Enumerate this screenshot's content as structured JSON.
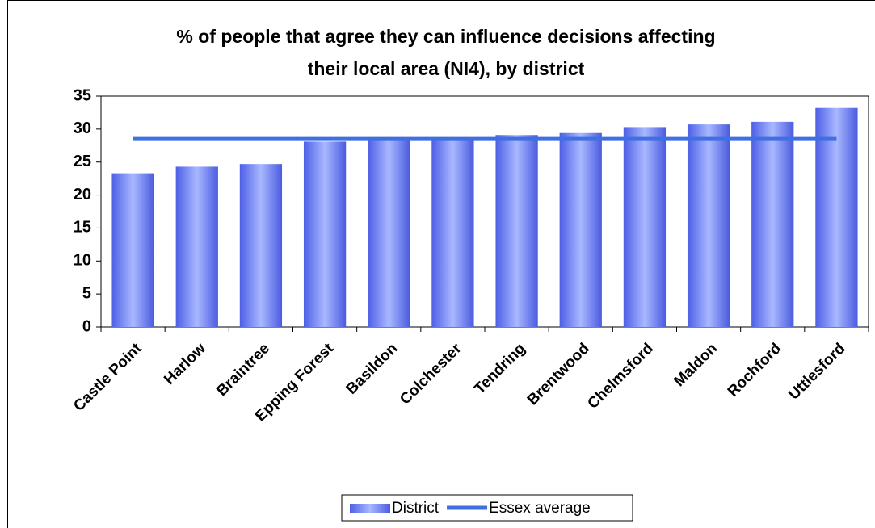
{
  "chart_data": {
    "type": "bar",
    "title": [
      "% of people that agree they can influence decisions affecting",
      "their local area (NI4), by district"
    ],
    "categories": [
      "Castle Point",
      "Harlow",
      "Braintree",
      "Epping Forest",
      "Basildon",
      "Colchester",
      "Tendring",
      "Brentwood",
      "Chelmsford",
      "Maldon",
      "Rochford",
      "Uttlesford"
    ],
    "series": [
      {
        "name": "District",
        "type": "bar",
        "color": "#6f84f7",
        "values": [
          23.3,
          24.3,
          24.7,
          28.1,
          28.5,
          28.6,
          29.1,
          29.4,
          30.3,
          30.7,
          31.1,
          33.2
        ]
      },
      {
        "name": "Essex average",
        "type": "line",
        "color": "#3f6fe0",
        "values": [
          28.5,
          28.5,
          28.5,
          28.5,
          28.5,
          28.5,
          28.5,
          28.5,
          28.5,
          28.5,
          28.5,
          28.5
        ]
      }
    ],
    "ylim": [
      0,
      35
    ],
    "yticks": [
      0,
      5,
      10,
      15,
      20,
      25,
      30,
      35
    ],
    "legend": "bottom"
  }
}
